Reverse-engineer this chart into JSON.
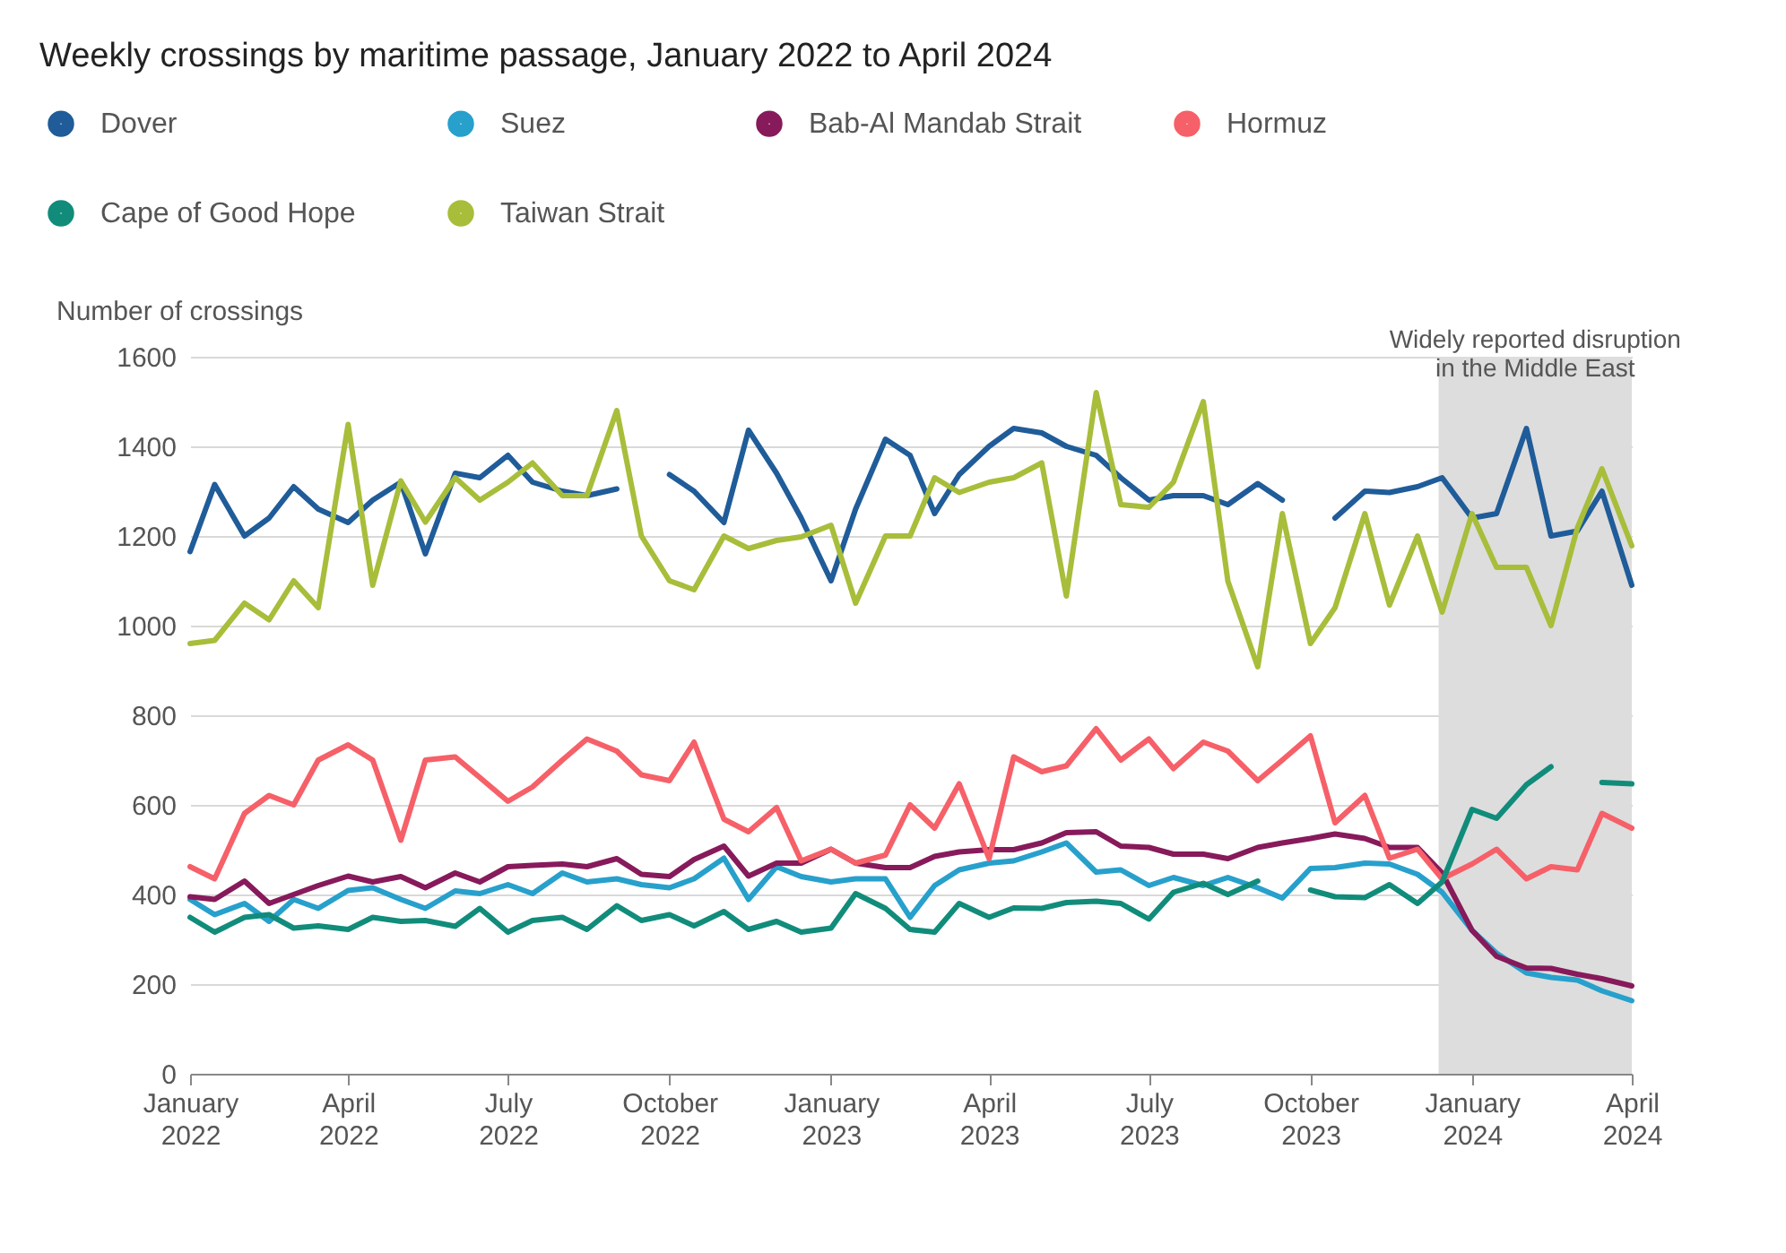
{
  "chart_data": {
    "type": "line",
    "title": "Weekly crossings by maritime passage, January 2022 to April 2024",
    "ylabel": "Number of crossings",
    "x": [
      "2022-01-01",
      "2022-01-15",
      "2022-02-01",
      "2022-02-15",
      "2022-03-01",
      "2022-03-15",
      "2022-04-01",
      "2022-04-15",
      "2022-05-01",
      "2022-05-15",
      "2022-06-01",
      "2022-06-15",
      "2022-07-01",
      "2022-07-15",
      "2022-08-01",
      "2022-08-15",
      "2022-09-01",
      "2022-09-15",
      "2022-10-01",
      "2022-10-15",
      "2022-11-01",
      "2022-11-15",
      "2022-12-01",
      "2022-12-15",
      "2023-01-01",
      "2023-01-15",
      "2023-02-01",
      "2023-02-15",
      "2023-03-01",
      "2023-03-15",
      "2023-04-01",
      "2023-04-15",
      "2023-05-01",
      "2023-05-15",
      "2023-06-01",
      "2023-06-15",
      "2023-07-01",
      "2023-07-15",
      "2023-08-01",
      "2023-08-15",
      "2023-09-01",
      "2023-09-15",
      "2023-10-01",
      "2023-10-15",
      "2023-11-01",
      "2023-11-15",
      "2023-12-01",
      "2023-12-15",
      "2024-01-01",
      "2024-01-15",
      "2024-02-01",
      "2024-02-15",
      "2024-03-01",
      "2024-03-15",
      "2024-04-01"
    ],
    "series": [
      {
        "name": "Dover",
        "color": "#1f5c99",
        "values": [
          1165,
          1315,
          1200,
          1240,
          1310,
          1260,
          1230,
          1280,
          1320,
          1160,
          1340,
          1330,
          1380,
          1320,
          1300,
          1290,
          1305,
          null,
          1337,
          1300,
          1230,
          1436,
          1340,
          1240,
          1100,
          1260,
          1416,
          1380,
          1250,
          1337,
          1400,
          1440,
          1430,
          1400,
          1380,
          1330,
          1280,
          1290,
          1290,
          1270,
          1317,
          1280,
          null,
          1240,
          1300,
          1297,
          1310,
          1330,
          1240,
          1250,
          1440,
          1200,
          1211,
          1300,
          1090
        ]
      },
      {
        "name": "Suez",
        "color": "#27a0cc",
        "values": [
          389,
          355,
          380,
          340,
          389,
          369,
          409,
          415,
          389,
          369,
          408,
          402,
          422,
          402,
          448,
          428,
          435,
          422,
          415,
          435,
          481,
          389,
          462,
          440,
          428,
          435,
          435,
          349,
          420,
          455,
          470,
          475,
          495,
          515,
          450,
          455,
          420,
          438,
          420,
          438,
          415,
          392,
          458,
          460,
          470,
          468,
          445,
          405,
          320,
          269,
          225,
          215,
          209,
          185,
          163
        ]
      },
      {
        "name": "Bab-Al Mandab Strait",
        "color": "#871a5b",
        "values": [
          395,
          389,
          430,
          380,
          400,
          420,
          441,
          428,
          440,
          415,
          448,
          428,
          462,
          465,
          468,
          462,
          480,
          445,
          440,
          478,
          508,
          441,
          470,
          470,
          501,
          470,
          460,
          460,
          485,
          495,
          500,
          500,
          515,
          538,
          540,
          508,
          505,
          490,
          490,
          480,
          505,
          515,
          525,
          535,
          525,
          505,
          505,
          448,
          320,
          262,
          236,
          235,
          222,
          212,
          196
        ]
      },
      {
        "name": "Hormuz",
        "color": "#f66068",
        "values": [
          462,
          435,
          581,
          621,
          600,
          700,
          734,
          700,
          521,
          700,
          707,
          661,
          608,
          640,
          700,
          747,
          720,
          667,
          654,
          740,
          568,
          540,
          594,
          475,
          501,
          470,
          488,
          600,
          548,
          647,
          480,
          707,
          674,
          687,
          770,
          700,
          747,
          681,
          740,
          720,
          654,
          700,
          754,
          560,
          621,
          481,
          501,
          435,
          468,
          501,
          435,
          462,
          455,
          581,
          548
        ]
      },
      {
        "name": "Cape of Good Hope",
        "color": "#118c7b",
        "values": [
          349,
          316,
          349,
          355,
          325,
          330,
          322,
          349,
          340,
          342,
          329,
          369,
          316,
          342,
          349,
          322,
          375,
          342,
          355,
          330,
          362,
          322,
          340,
          316,
          325,
          402,
          369,
          322,
          316,
          380,
          349,
          370,
          369,
          382,
          385,
          380,
          345,
          405,
          425,
          400,
          430,
          null,
          410,
          395,
          393,
          422,
          380,
          428,
          590,
          570,
          645,
          685,
          null,
          650,
          647
        ]
      },
      {
        "name": "Taiwan Strait",
        "color": "#a8bd3a",
        "values": [
          960,
          967,
          1050,
          1013,
          1100,
          1040,
          1449,
          1090,
          1323,
          1231,
          1330,
          1280,
          1320,
          1363,
          1290,
          1290,
          1480,
          1200,
          1100,
          1080,
          1200,
          1172,
          1190,
          1198,
          1224,
          1050,
          1200,
          1200,
          1330,
          1297,
          1320,
          1330,
          1363,
          1066,
          1520,
          1270,
          1264,
          1320,
          1500,
          1099,
          908,
          1250,
          960,
          1040,
          1250,
          1046,
          1200,
          1030,
          1250,
          1130,
          1130,
          1000,
          1218,
          1350,
          1178
        ]
      }
    ],
    "xlim": [
      "2022-01-01",
      "2024-04-01"
    ],
    "xticks": [
      {
        "value": "2022-01-01",
        "label": "January 2022"
      },
      {
        "value": "2022-04-01",
        "label": "April 2022"
      },
      {
        "value": "2022-07-01",
        "label": "July 2022"
      },
      {
        "value": "2022-10-01",
        "label": "October 2022"
      },
      {
        "value": "2023-01-01",
        "label": "January 2023"
      },
      {
        "value": "2023-04-01",
        "label": "April 2023"
      },
      {
        "value": "2023-07-01",
        "label": "July 2023"
      },
      {
        "value": "2023-10-01",
        "label": "October 2023"
      },
      {
        "value": "2024-01-01",
        "label": "January 2024"
      },
      {
        "value": "2024-04-01",
        "label": "April 2024"
      }
    ],
    "ylim": [
      0,
      1600
    ],
    "yticks": [
      0,
      200,
      400,
      600,
      800,
      1000,
      1200,
      1400,
      1600
    ],
    "bands": [
      {
        "axis": "x",
        "from": "2023-12-13",
        "to": "2024-04-01",
        "label": "Widely reported disruption in the Middle East",
        "color": "#dddddd"
      }
    ],
    "grid": "y",
    "legend": "top",
    "line_style": "solid",
    "marker": "none"
  }
}
